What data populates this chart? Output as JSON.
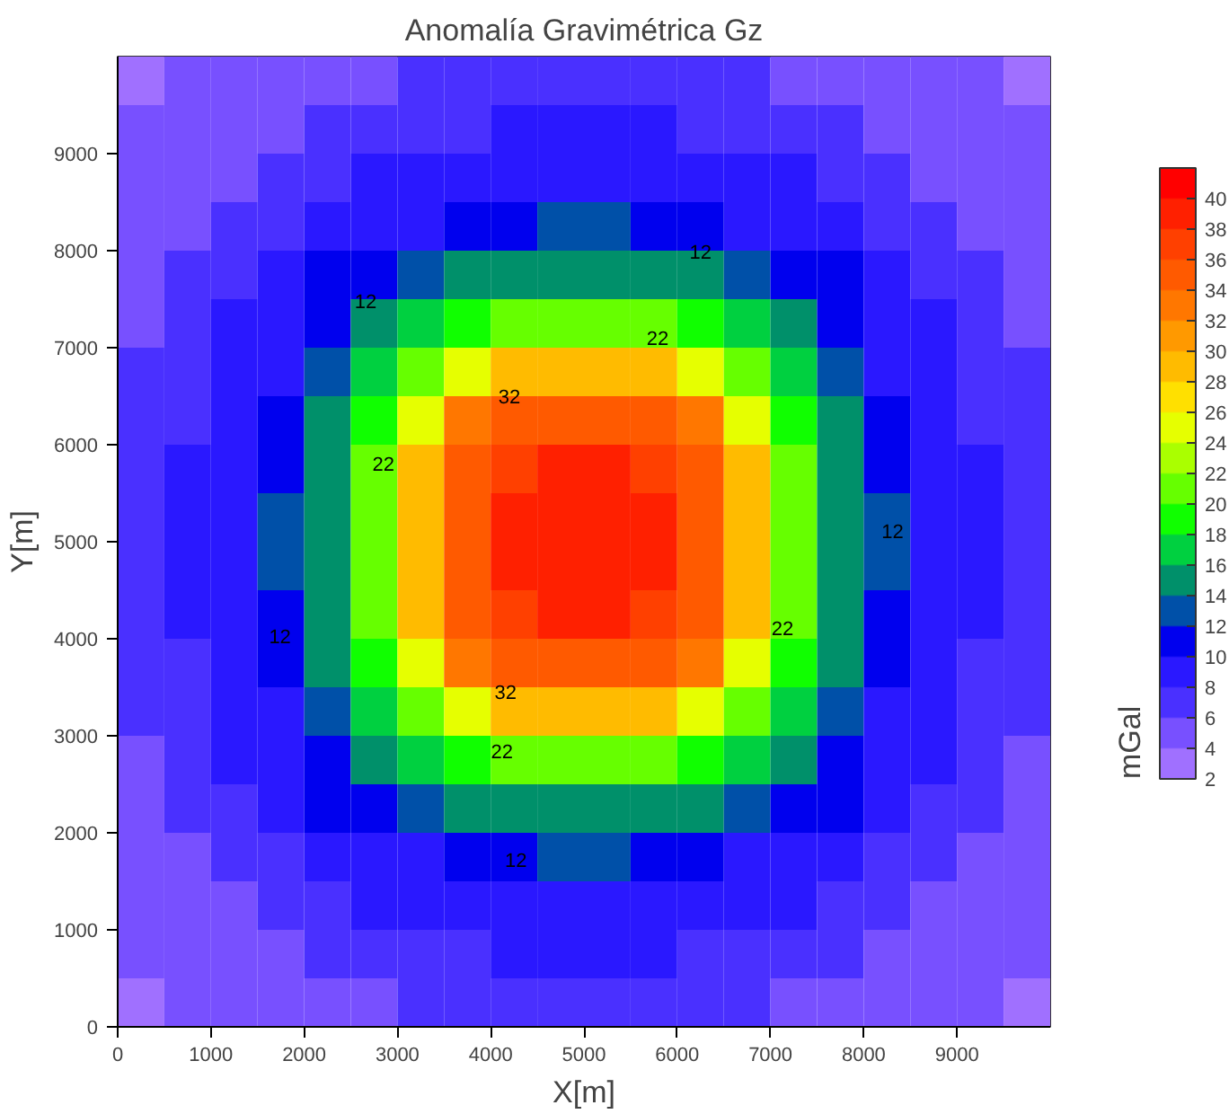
{
  "chart_data": {
    "type": "heatmap",
    "title": "Anomalía Gravimétrica Gz",
    "xlabel": "X[m]",
    "ylabel": "Y[m]",
    "clabel": "mGal",
    "x": [
      250,
      750,
      1250,
      1750,
      2250,
      2750,
      3250,
      3750,
      4250,
      4750,
      5250,
      5750,
      6250,
      6750,
      7250,
      7750,
      8250,
      8750,
      9250,
      9750
    ],
    "y": [
      9750,
      9250,
      8750,
      8250,
      7750,
      7250,
      6750,
      6250,
      5750,
      5250,
      4750,
      4250,
      3750,
      3250,
      2750,
      2250,
      1750,
      1250,
      750,
      250
    ],
    "cells": [
      [
        3.6,
        4.1,
        4.5,
        4.9,
        5.3,
        5.7,
        6.1,
        6.4,
        6.7,
        6.9,
        6.9,
        6.7,
        6.4,
        6.1,
        5.7,
        5.3,
        4.9,
        4.5,
        4.1,
        3.6
      ],
      [
        4.1,
        4.6,
        5.1,
        5.6,
        6.1,
        6.7,
        7.3,
        7.8,
        8.1,
        8.3,
        8.3,
        8.1,
        7.8,
        7.3,
        6.7,
        6.1,
        5.6,
        5.1,
        4.6,
        4.1
      ],
      [
        4.5,
        5.1,
        5.7,
        6.3,
        7.2,
        8.0,
        8.6,
        9.1,
        9.5,
        9.7,
        9.7,
        9.5,
        9.1,
        8.6,
        8.0,
        7.2,
        6.3,
        5.7,
        5.1,
        4.5
      ],
      [
        4.9,
        5.6,
        6.3,
        7.3,
        8.3,
        9.1,
        9.9,
        10.6,
        11.7,
        12.2,
        12.2,
        11.7,
        10.6,
        9.9,
        9.1,
        8.3,
        7.3,
        6.3,
        5.6,
        4.9
      ],
      [
        5.3,
        6.1,
        7.2,
        8.3,
        10.1,
        11.7,
        13.5,
        14.6,
        15.2,
        15.5,
        15.5,
        15.2,
        14.6,
        13.5,
        11.7,
        10.1,
        8.3,
        7.2,
        6.1,
        5.3
      ],
      [
        5.7,
        6.7,
        8.0,
        9.1,
        11.7,
        15.0,
        16.7,
        18.8,
        20.1,
        20.5,
        20.5,
        20.1,
        18.8,
        16.7,
        15.0,
        11.7,
        9.1,
        8.0,
        6.7,
        5.7
      ],
      [
        6.1,
        7.3,
        8.6,
        9.9,
        13.5,
        16.7,
        21.1,
        25.2,
        28.1,
        29.0,
        29.0,
        28.1,
        25.2,
        21.1,
        16.7,
        13.5,
        9.9,
        8.6,
        7.3,
        6.1
      ],
      [
        6.4,
        7.8,
        9.1,
        10.6,
        14.6,
        18.8,
        25.2,
        32.5,
        35.0,
        35.5,
        35.5,
        35.0,
        32.5,
        25.2,
        18.8,
        14.6,
        10.6,
        9.1,
        7.8,
        6.4
      ],
      [
        6.7,
        8.1,
        9.5,
        11.7,
        15.2,
        20.1,
        28.1,
        35.0,
        37.3,
        38.2,
        38.2,
        37.3,
        35.0,
        28.1,
        20.1,
        15.2,
        11.7,
        9.5,
        8.1,
        6.7
      ],
      [
        6.9,
        8.3,
        9.7,
        12.2,
        15.5,
        20.5,
        29.0,
        35.5,
        38.2,
        39.7,
        39.7,
        38.2,
        35.5,
        29.0,
        20.5,
        15.5,
        12.2,
        9.7,
        8.3,
        6.9
      ],
      [
        6.9,
        8.3,
        9.7,
        12.2,
        15.5,
        20.5,
        29.0,
        35.5,
        38.2,
        39.7,
        39.7,
        38.2,
        35.5,
        29.0,
        20.5,
        15.5,
        12.2,
        9.7,
        8.3,
        6.9
      ],
      [
        6.7,
        8.1,
        9.5,
        11.7,
        15.2,
        20.1,
        28.1,
        35.0,
        37.3,
        38.2,
        38.2,
        37.3,
        35.0,
        28.1,
        20.1,
        15.2,
        11.7,
        9.5,
        8.1,
        6.7
      ],
      [
        6.4,
        7.8,
        9.1,
        10.6,
        14.6,
        18.8,
        25.2,
        32.5,
        35.0,
        35.5,
        35.5,
        35.0,
        32.5,
        25.2,
        18.8,
        14.6,
        10.6,
        9.1,
        7.8,
        6.4
      ],
      [
        6.1,
        7.3,
        8.6,
        9.9,
        13.5,
        16.7,
        21.1,
        25.2,
        28.1,
        29.0,
        29.0,
        28.1,
        25.2,
        21.1,
        16.7,
        13.5,
        9.9,
        8.6,
        7.3,
        6.1
      ],
      [
        5.7,
        6.7,
        8.0,
        9.1,
        11.7,
        15.0,
        16.7,
        18.8,
        20.1,
        20.5,
        20.5,
        20.1,
        18.8,
        16.7,
        15.0,
        11.7,
        9.1,
        8.0,
        6.7,
        5.7
      ],
      [
        5.3,
        6.1,
        7.2,
        8.3,
        10.1,
        11.7,
        13.5,
        14.6,
        15.2,
        15.5,
        15.5,
        15.2,
        14.6,
        13.5,
        11.7,
        10.1,
        8.3,
        7.2,
        6.1,
        5.3
      ],
      [
        4.9,
        5.6,
        6.3,
        7.3,
        8.3,
        9.1,
        9.9,
        10.6,
        11.7,
        12.2,
        12.2,
        11.7,
        10.6,
        9.9,
        9.1,
        8.3,
        7.3,
        6.3,
        5.6,
        4.9
      ],
      [
        4.5,
        5.1,
        5.7,
        6.3,
        7.2,
        8.0,
        8.6,
        9.1,
        9.5,
        9.7,
        9.7,
        9.5,
        9.1,
        8.6,
        8.0,
        7.2,
        6.3,
        5.7,
        5.1,
        4.5
      ],
      [
        4.1,
        4.6,
        5.1,
        5.6,
        6.1,
        6.7,
        7.3,
        7.8,
        8.1,
        8.3,
        8.3,
        8.1,
        7.8,
        7.3,
        6.7,
        6.1,
        5.6,
        5.1,
        4.6,
        4.1
      ],
      [
        3.6,
        4.1,
        4.5,
        4.9,
        5.3,
        5.7,
        6.1,
        6.4,
        6.7,
        6.9,
        6.9,
        6.7,
        6.4,
        6.1,
        5.7,
        5.3,
        4.9,
        4.5,
        4.1,
        3.6
      ]
    ],
    "colors": [
      "#a070ff",
      "#7850ff",
      "#4a30ff",
      "#2a18ff",
      "#0000ee",
      "#0050a8",
      "#00906a",
      "#00d040",
      "#10ff00",
      "#66ff00",
      "#aaff00",
      "#e6ff00",
      "#ffe000",
      "#ffbb00",
      "#ff9900",
      "#ff7700",
      "#ff5a00",
      "#ff4000",
      "#ff2000",
      "#ff0000"
    ],
    "clim": [
      2,
      42
    ],
    "cticks": [
      2,
      4,
      6,
      8,
      10,
      12,
      14,
      16,
      18,
      20,
      22,
      24,
      26,
      28,
      30,
      32,
      34,
      36,
      38,
      40
    ],
    "xlim": [
      0,
      10000
    ],
    "ylim": [
      0,
      10000
    ],
    "xticks": [
      0,
      1000,
      2000,
      3000,
      4000,
      5000,
      6000,
      7000,
      8000,
      9000
    ],
    "yticks": [
      0,
      1000,
      2000,
      3000,
      4000,
      5000,
      6000,
      7000,
      8000,
      9000
    ],
    "annotations": [
      "12",
      "12",
      "12",
      "12",
      "12",
      "22",
      "22",
      "22",
      "22",
      "32",
      "32"
    ]
  }
}
